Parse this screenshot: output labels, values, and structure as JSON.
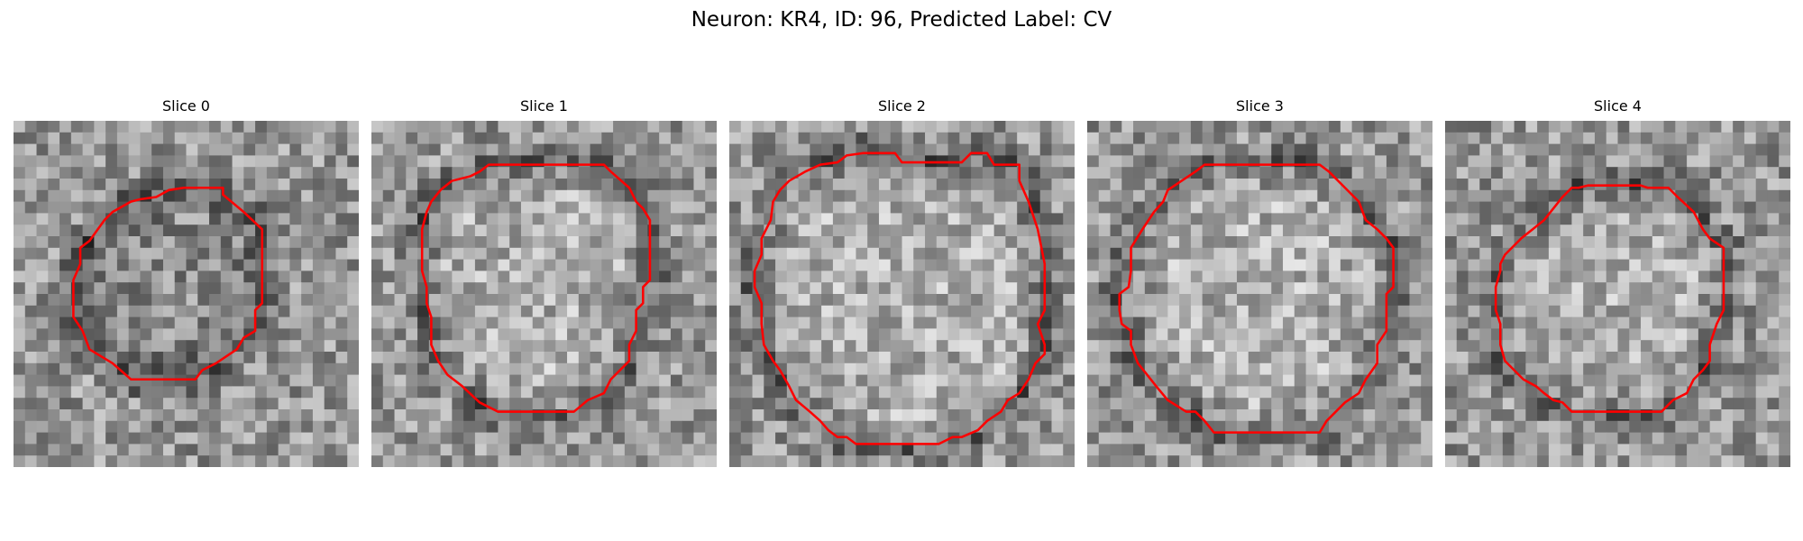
{
  "figure": {
    "title": "Neuron: KR4, ID: 96, Predicted Label: CV"
  },
  "panels": [
    {
      "title": "Slice 0",
      "seed": 11,
      "interior_tone": "gray",
      "contour_color": "#ff0000",
      "contour_points": [
        [
          14.8,
          5.8
        ],
        [
          18.2,
          5.8
        ],
        [
          18.2,
          6.4
        ],
        [
          20.0,
          7.9
        ],
        [
          21.6,
          9.4
        ],
        [
          21.6,
          15.8
        ],
        [
          21.0,
          16.4
        ],
        [
          21.0,
          18.2
        ],
        [
          20.0,
          18.8
        ],
        [
          19.4,
          19.8
        ],
        [
          17.6,
          21.0
        ],
        [
          16.4,
          21.6
        ],
        [
          15.8,
          22.4
        ],
        [
          10.2,
          22.4
        ],
        [
          8.6,
          21.0
        ],
        [
          6.6,
          19.8
        ],
        [
          6.0,
          18.2
        ],
        [
          5.2,
          17.0
        ],
        [
          5.2,
          13.8
        ],
        [
          5.8,
          12.4
        ],
        [
          5.8,
          11.0
        ],
        [
          6.6,
          10.4
        ],
        [
          7.9,
          8.6
        ],
        [
          8.6,
          7.9
        ],
        [
          10.2,
          7.0
        ],
        [
          11.0,
          6.8
        ],
        [
          12.4,
          6.6
        ],
        [
          13.5,
          6.0
        ]
      ]
    },
    {
      "title": "Slice 1",
      "seed": 23,
      "interior_tone": "bright",
      "contour_color": "#ff0000",
      "contour_points": [
        [
          10.2,
          3.8
        ],
        [
          20.2,
          3.8
        ],
        [
          20.8,
          4.4
        ],
        [
          22.4,
          5.8
        ],
        [
          23.0,
          7.0
        ],
        [
          23.6,
          7.6
        ],
        [
          24.2,
          8.6
        ],
        [
          24.2,
          13.8
        ],
        [
          23.6,
          14.4
        ],
        [
          23.6,
          15.8
        ],
        [
          23.0,
          16.4
        ],
        [
          23.0,
          18.2
        ],
        [
          22.4,
          19.4
        ],
        [
          22.4,
          20.8
        ],
        [
          21.6,
          21.6
        ],
        [
          20.8,
          22.4
        ],
        [
          20.2,
          23.6
        ],
        [
          18.8,
          24.2
        ],
        [
          17.6,
          25.2
        ],
        [
          11.0,
          25.2
        ],
        [
          9.4,
          24.4
        ],
        [
          7.9,
          23.0
        ],
        [
          6.6,
          22.0
        ],
        [
          5.8,
          20.8
        ],
        [
          5.2,
          19.4
        ],
        [
          5.2,
          17.0
        ],
        [
          4.8,
          15.8
        ],
        [
          4.8,
          14.4
        ],
        [
          4.4,
          13.0
        ],
        [
          4.4,
          9.4
        ],
        [
          4.8,
          7.9
        ],
        [
          5.2,
          7.0
        ],
        [
          6.0,
          6.0
        ],
        [
          7.0,
          5.2
        ],
        [
          8.6,
          4.8
        ],
        [
          9.4,
          4.4
        ]
      ]
    },
    {
      "title": "Slice 2",
      "seed": 37,
      "interior_tone": "bright",
      "contour_color": "#ff0000",
      "contour_points": [
        [
          13.0,
          2.8
        ],
        [
          14.4,
          2.8
        ],
        [
          15.0,
          3.6
        ],
        [
          20.2,
          3.6
        ],
        [
          21.0,
          2.8
        ],
        [
          22.4,
          2.8
        ],
        [
          23.0,
          3.8
        ],
        [
          25.2,
          3.8
        ],
        [
          25.2,
          5.2
        ],
        [
          26.0,
          7.0
        ],
        [
          26.8,
          9.4
        ],
        [
          27.4,
          12.4
        ],
        [
          27.4,
          16.4
        ],
        [
          26.8,
          17.6
        ],
        [
          27.4,
          19.4
        ],
        [
          27.4,
          20.2
        ],
        [
          26.6,
          21.0
        ],
        [
          26.0,
          22.4
        ],
        [
          25.2,
          23.6
        ],
        [
          24.2,
          24.2
        ],
        [
          23.6,
          25.2
        ],
        [
          22.4,
          26.0
        ],
        [
          21.6,
          26.8
        ],
        [
          20.2,
          27.4
        ],
        [
          19.4,
          27.4
        ],
        [
          18.2,
          28.0
        ],
        [
          11.0,
          28.0
        ],
        [
          10.2,
          27.4
        ],
        [
          9.4,
          27.4
        ],
        [
          8.6,
          26.8
        ],
        [
          7.9,
          26.0
        ],
        [
          7.0,
          25.2
        ],
        [
          5.8,
          24.2
        ],
        [
          5.2,
          23.0
        ],
        [
          4.4,
          21.6
        ],
        [
          3.8,
          20.8
        ],
        [
          3.0,
          19.4
        ],
        [
          2.8,
          17.6
        ],
        [
          2.8,
          15.8
        ],
        [
          2.2,
          14.4
        ],
        [
          2.2,
          13.0
        ],
        [
          2.8,
          11.6
        ],
        [
          2.8,
          10.2
        ],
        [
          3.6,
          8.6
        ],
        [
          3.8,
          7.0
        ],
        [
          4.4,
          6.0
        ],
        [
          5.2,
          5.2
        ],
        [
          6.6,
          4.4
        ],
        [
          7.9,
          3.8
        ],
        [
          9.4,
          3.6
        ],
        [
          10.2,
          3.0
        ],
        [
          11.6,
          2.8
        ]
      ]
    },
    {
      "title": "Slice 3",
      "seed": 53,
      "interior_tone": "bright",
      "contour_color": "#ff0000",
      "contour_points": [
        [
          10.2,
          3.8
        ],
        [
          20.2,
          3.8
        ],
        [
          21.0,
          4.4
        ],
        [
          22.4,
          5.8
        ],
        [
          23.6,
          7.0
        ],
        [
          24.2,
          8.6
        ],
        [
          25.2,
          9.4
        ],
        [
          26.0,
          10.2
        ],
        [
          26.6,
          11.0
        ],
        [
          26.6,
          14.4
        ],
        [
          26.0,
          15.0
        ],
        [
          26.0,
          18.2
        ],
        [
          25.2,
          19.4
        ],
        [
          25.2,
          21.0
        ],
        [
          24.2,
          22.4
        ],
        [
          23.6,
          23.6
        ],
        [
          22.4,
          24.4
        ],
        [
          21.6,
          25.2
        ],
        [
          20.8,
          26.0
        ],
        [
          20.2,
          27.0
        ],
        [
          11.0,
          27.0
        ],
        [
          10.2,
          26.0
        ],
        [
          9.4,
          25.2
        ],
        [
          8.6,
          25.2
        ],
        [
          7.0,
          24.2
        ],
        [
          6.0,
          23.0
        ],
        [
          5.2,
          22.0
        ],
        [
          4.4,
          21.0
        ],
        [
          3.8,
          19.4
        ],
        [
          3.8,
          18.2
        ],
        [
          3.0,
          17.6
        ],
        [
          2.8,
          16.4
        ],
        [
          2.8,
          15.0
        ],
        [
          3.6,
          14.4
        ],
        [
          3.8,
          13.0
        ],
        [
          3.8,
          11.0
        ],
        [
          4.8,
          9.4
        ],
        [
          5.8,
          7.9
        ],
        [
          6.6,
          7.0
        ],
        [
          7.0,
          6.0
        ],
        [
          8.2,
          5.2
        ],
        [
          9.4,
          4.4
        ]
      ]
    },
    {
      "title": "Slice 4",
      "seed": 71,
      "interior_tone": "bright",
      "contour_color": "#ff0000",
      "contour_points": [
        [
          11.6,
          5.8
        ],
        [
          12.4,
          5.6
        ],
        [
          17.0,
          5.6
        ],
        [
          17.6,
          5.8
        ],
        [
          19.4,
          5.8
        ],
        [
          20.2,
          6.6
        ],
        [
          21.6,
          7.9
        ],
        [
          22.4,
          9.4
        ],
        [
          23.0,
          10.2
        ],
        [
          24.2,
          11.0
        ],
        [
          24.2,
          16.4
        ],
        [
          23.6,
          17.6
        ],
        [
          23.0,
          19.4
        ],
        [
          23.0,
          20.8
        ],
        [
          22.4,
          21.6
        ],
        [
          21.6,
          22.4
        ],
        [
          21.0,
          23.6
        ],
        [
          19.8,
          24.2
        ],
        [
          18.8,
          25.2
        ],
        [
          11.0,
          25.2
        ],
        [
          10.2,
          24.4
        ],
        [
          9.4,
          24.2
        ],
        [
          8.6,
          23.6
        ],
        [
          7.9,
          23.0
        ],
        [
          6.8,
          22.4
        ],
        [
          6.0,
          21.6
        ],
        [
          5.2,
          20.8
        ],
        [
          4.8,
          19.4
        ],
        [
          4.8,
          17.6
        ],
        [
          4.4,
          16.4
        ],
        [
          4.4,
          14.4
        ],
        [
          4.8,
          13.0
        ],
        [
          4.8,
          12.4
        ],
        [
          5.2,
          11.6
        ],
        [
          6.0,
          10.8
        ],
        [
          6.6,
          10.2
        ],
        [
          7.6,
          9.4
        ],
        [
          8.6,
          8.6
        ],
        [
          9.4,
          7.6
        ],
        [
          10.2,
          6.6
        ],
        [
          11.0,
          5.8
        ]
      ]
    }
  ]
}
